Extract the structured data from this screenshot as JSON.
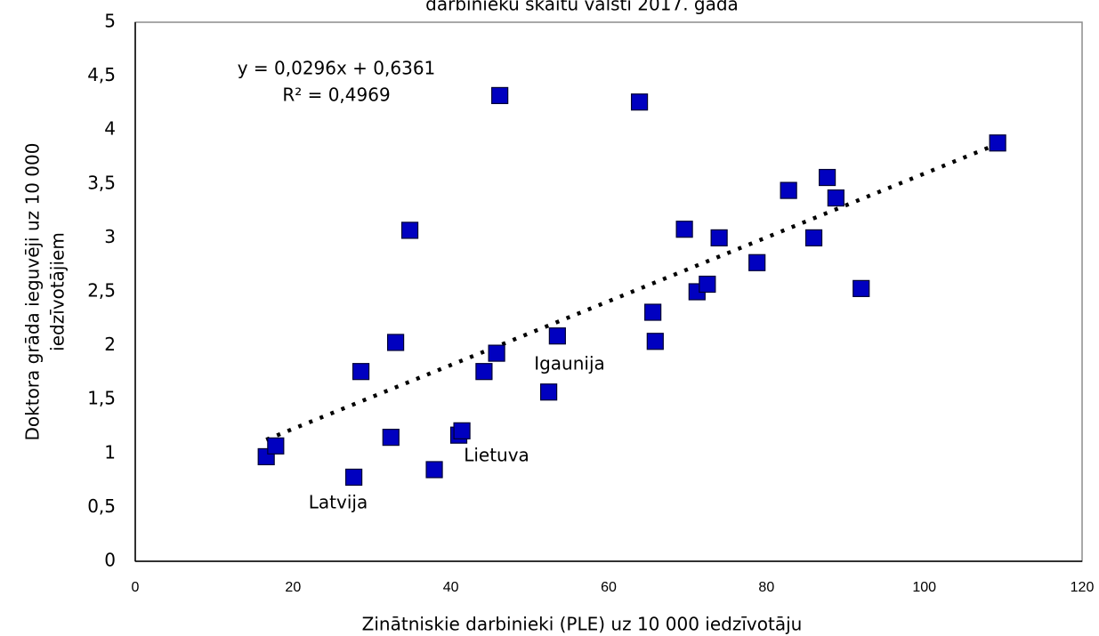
{
  "chart_data": {
    "type": "scatter",
    "title": "darbinieku skaitu valstī 2017. gadā",
    "x_label": "Zinātniskie darbinieki (PLE) uz 10 000 iedzīvotāju",
    "y_label": [
      "Doktora grāda ieguvēji uz 10 000",
      "iedzīvotājiem"
    ],
    "xlim": [
      0,
      120
    ],
    "xticks": [
      0,
      20,
      40,
      60,
      80,
      100,
      120
    ],
    "ylim": [
      0,
      5
    ],
    "yticks": [
      0,
      {
        "value": 0.5,
        "label": "0,5"
      },
      1,
      {
        "value": 1.5,
        "label": "1,5"
      },
      2,
      {
        "value": 2.5,
        "label": "2,5"
      },
      3,
      {
        "value": 3.5,
        "label": "3,5"
      },
      4,
      {
        "value": 4.5,
        "label": "4,5"
      },
      5
    ],
    "grid": false,
    "series": [
      {
        "color": "#0000c0",
        "x": [
          16.6,
          17.8,
          27.7,
          28.6,
          32.4,
          33.0,
          34.8,
          37.9,
          41.0,
          41.4,
          44.2,
          45.8,
          46.2,
          52.4,
          53.5,
          63.9,
          65.6,
          65.9,
          69.6,
          71.2,
          72.5,
          74.0,
          78.8,
          82.8,
          86.0,
          87.7,
          88.8,
          92.0,
          109.3
        ],
        "values": [
          0.97,
          1.07,
          0.78,
          1.76,
          1.15,
          2.03,
          3.07,
          0.85,
          1.17,
          1.21,
          1.76,
          1.93,
          4.32,
          1.57,
          2.09,
          4.26,
          2.31,
          2.04,
          3.08,
          2.5,
          2.57,
          3.0,
          2.77,
          3.44,
          3.0,
          3.56,
          3.37,
          2.53,
          3.88
        ]
      }
    ],
    "trendline": {
      "slope": 0.0296,
      "intercept": 0.6361,
      "label": "y = 0,0296x + 0,6361",
      "r2_label": "R² = 0,4969"
    },
    "annotations": [
      "Latvija",
      "Lietuva",
      "Igaunija"
    ]
  }
}
